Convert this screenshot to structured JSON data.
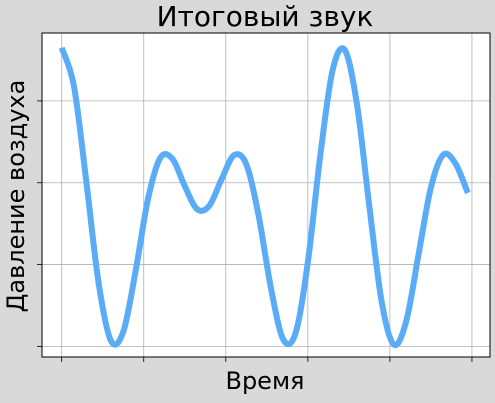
{
  "chart_data": {
    "type": "line",
    "title": "Итоговый звук",
    "xlabel": "Время",
    "ylabel": "Давление воздуха",
    "x": [
      0,
      0.15,
      0.3,
      0.45,
      0.6,
      0.75,
      0.9,
      1.05,
      1.2,
      1.35,
      1.5,
      1.65,
      1.8,
      1.95,
      2.1,
      2.25,
      2.4,
      2.55,
      2.7,
      2.85,
      3.0,
      3.15,
      3.3,
      3.45,
      3.6,
      3.75,
      3.9,
      4.05,
      4.2,
      4.35,
      4.5,
      4.65,
      4.8,
      4.95
    ],
    "series": [
      {
        "color": "#5aacf7",
        "values": [
          2,
          1.527,
          0.365,
          -0.876,
          -1.581,
          -1.473,
          -0.735,
          0.142,
          0.651,
          0.642,
          0.309,
          0.027,
          0.07,
          0.395,
          0.686,
          0.576,
          -0.052,
          -0.937,
          -1.566,
          -1.489,
          -0.621,
          0.669,
          1.717,
          1.973,
          1.3,
          0.057,
          -1.106,
          -1.629,
          -1.338,
          -0.522,
          0.293,
          0.691,
          0.583,
          0.225
        ]
      }
    ],
    "xlim": [
      -0.24,
      5.22
    ],
    "ylim": [
      -1.78,
      2.18
    ],
    "xticks": [
      0,
      1,
      2,
      3,
      4,
      5
    ],
    "yticks": [
      -1.65,
      -0.65,
      0.35,
      1.35
    ],
    "grid": true
  }
}
